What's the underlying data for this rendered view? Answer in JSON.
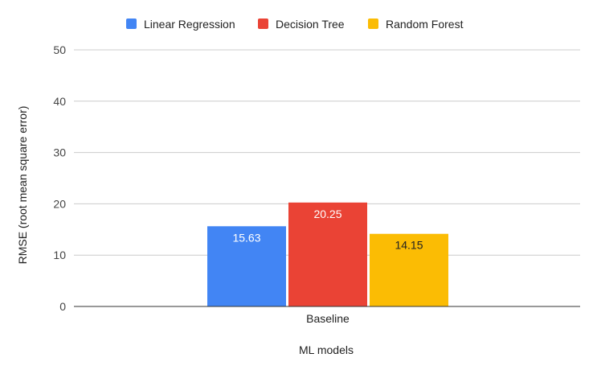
{
  "chart_data": {
    "type": "bar",
    "categories": [
      "Baseline"
    ],
    "series": [
      {
        "name": "Linear Regression",
        "values": [
          15.63
        ],
        "label": "15.63",
        "color": "#4285f4",
        "label_color": "#ffffff"
      },
      {
        "name": "Decision Tree",
        "values": [
          20.25
        ],
        "label": "20.25",
        "color": "#ea4335",
        "label_color": "#ffffff"
      },
      {
        "name": "Random Forest",
        "values": [
          14.15
        ],
        "label": "14.15",
        "color": "#fbbc04",
        "label_color": "#222222"
      }
    ],
    "xlabel": "ML models",
    "ylabel": "RMSE (root mean square error)",
    "ylim": [
      0,
      50
    ],
    "yticks": [
      "0",
      "10",
      "20",
      "30",
      "40",
      "50"
    ],
    "grid": true,
    "legend_position": "top"
  }
}
